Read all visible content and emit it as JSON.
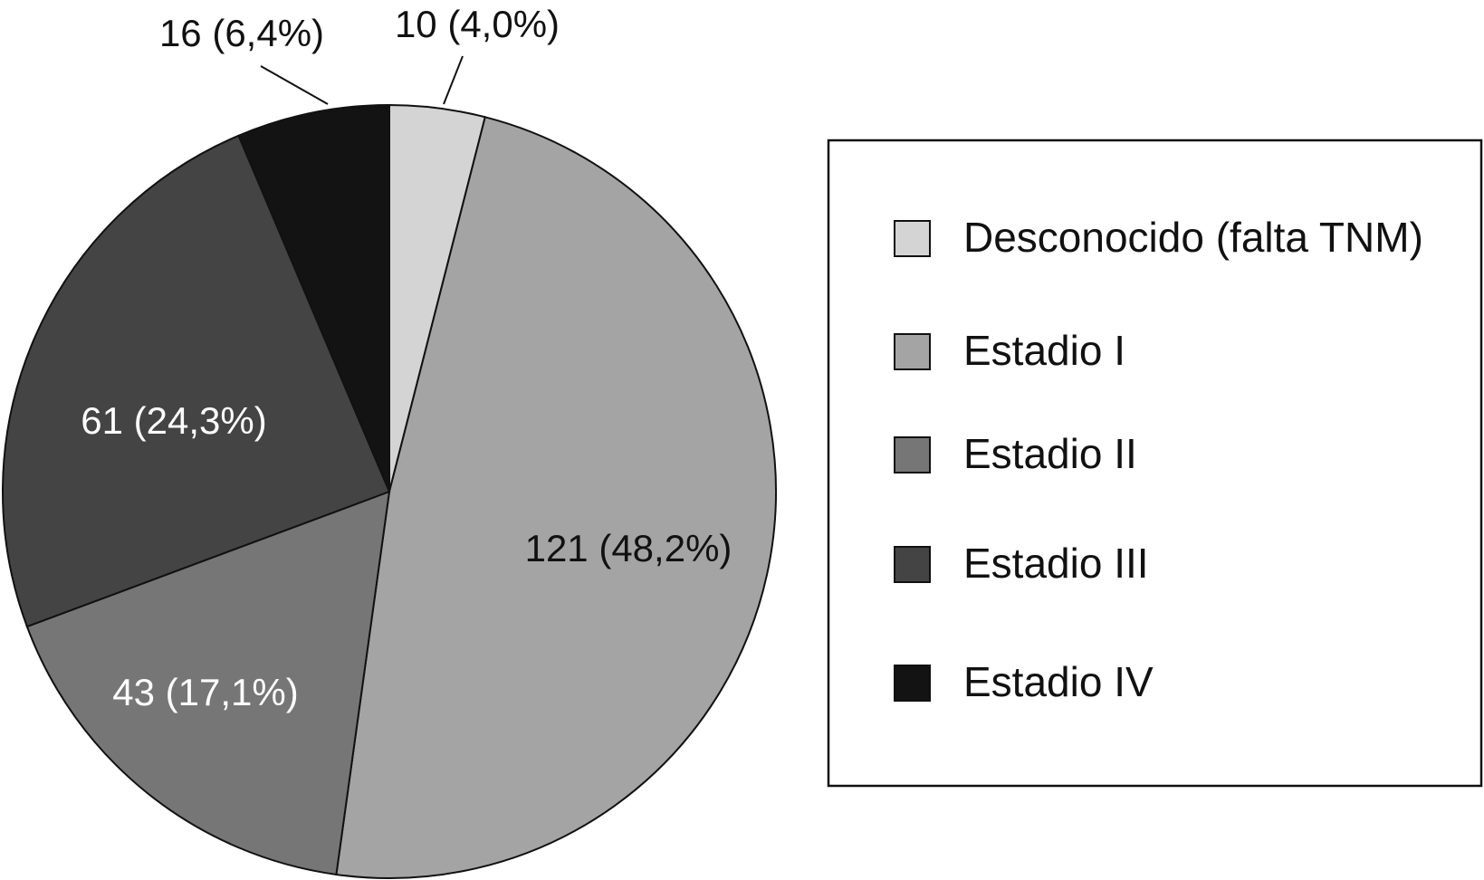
{
  "chart_data": {
    "type": "pie",
    "categories": [
      "Desconocido (falta TNM)",
      "Estadio I",
      "Estadio II",
      "Estadio III",
      "Estadio IV"
    ],
    "values": [
      10,
      121,
      43,
      61,
      16
    ],
    "value_labels": [
      "10 (4,0%)",
      "121 (48,2%)",
      "43 (17,1%)",
      "61 (24,3%)",
      "16 (6,4%)"
    ],
    "colors": [
      "#d4d4d4",
      "#a4a4a4",
      "#767676",
      "#444444",
      "#131313"
    ],
    "legend": "right"
  }
}
